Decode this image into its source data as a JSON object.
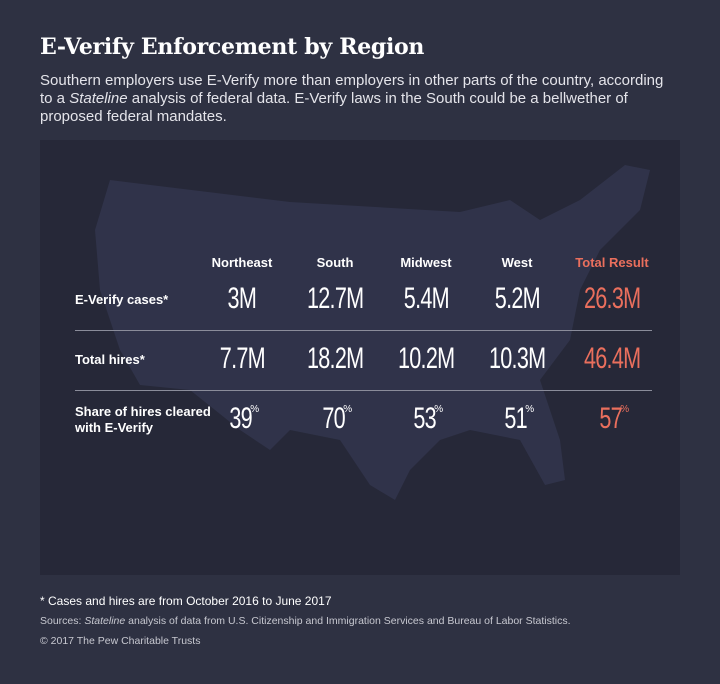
{
  "header": {
    "title": "E-Verify Enforcement by Region",
    "subtitle": [
      "Southern employers use E-Verify more than employers in other parts of the country, according to a ",
      "Stateline",
      " analysis of federal data. E-Verify laws in the South could be a bellwether of proposed federal mandates."
    ]
  },
  "table": {
    "columns": [
      "Northeast",
      "South",
      "Midwest",
      "West",
      "Total Result"
    ],
    "rows": [
      {
        "label": "E-Verify cases*",
        "cells": [
          "3M",
          "12.7M",
          "5.4M",
          "5.2M",
          "26.3M"
        ]
      },
      {
        "label": "Total hires*",
        "cells": [
          "7.7M",
          "18.2M",
          "10.2M",
          "10.3M",
          "46.4M"
        ]
      },
      {
        "label": "Share of hires cleared with E-Verify",
        "cells": [
          {
            "value": 39,
            "unit": "%"
          },
          {
            "value": 70,
            "unit": "%"
          },
          {
            "value": 53,
            "unit": "%"
          },
          {
            "value": 51,
            "unit": "%"
          },
          {
            "value": 57,
            "unit": "%"
          }
        ]
      }
    ]
  },
  "footer": {
    "note": "*  Cases and hires are from October 2016 to June 2017",
    "sources": [
      "Sources: ",
      "Stateline",
      " analysis of data from U.S. Citizenship and Immigration Services and Bureau of Labor Statistics."
    ],
    "copyright": "© 2017 The Pew Charitable Trusts"
  }
}
